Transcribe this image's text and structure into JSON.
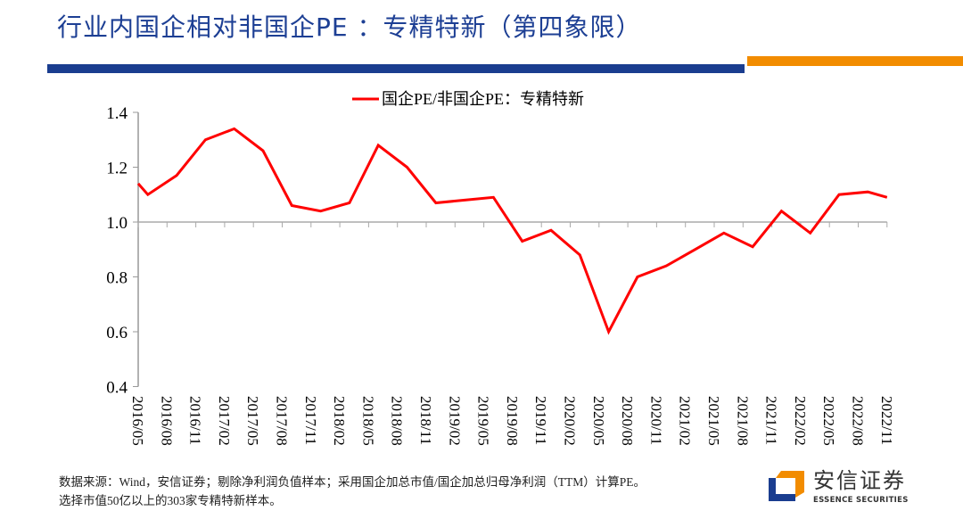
{
  "header": {
    "title": "行业内国企相对非国企PE ：专精特新（第四象限）"
  },
  "colors": {
    "title": "#1d3f94",
    "bar_blue": "#1a3d8f",
    "bar_orange": "#f28c00",
    "series": "#ff0000"
  },
  "chart_data": {
    "type": "line",
    "title": "",
    "xlabel": "",
    "ylabel": "",
    "ylim": [
      0.4,
      1.4
    ],
    "yticks": [
      "0.4",
      "0.6",
      "0.8",
      "1.0",
      "1.2",
      "1.4"
    ],
    "categories": [
      "2016/05",
      "2016/08",
      "2016/11",
      "2017/02",
      "2017/05",
      "2017/08",
      "2017/11",
      "2018/02",
      "2018/05",
      "2018/08",
      "2018/11",
      "2019/02",
      "2019/05",
      "2019/08",
      "2019/11",
      "2020/02",
      "2020/05",
      "2020/08",
      "2020/11",
      "2021/02",
      "2021/05",
      "2021/08",
      "2021/11",
      "2022/02",
      "2022/05",
      "2022/08",
      "2022/11"
    ],
    "grid": false,
    "reference_line": 1.0,
    "legend": {
      "position": "top",
      "entries": [
        "国企PE/非国企PE：专精特新"
      ]
    },
    "series": [
      {
        "name": "国企PE/非国企PE：专精特新",
        "x": [
          "2016/05",
          "2016/06",
          "2016/09",
          "2016/12",
          "2017/03",
          "2017/06",
          "2017/09",
          "2017/12",
          "2018/03",
          "2018/06",
          "2018/09",
          "2018/12",
          "2019/03",
          "2019/06",
          "2019/09",
          "2019/12",
          "2020/03",
          "2020/06",
          "2020/09",
          "2020/12",
          "2021/03",
          "2021/06",
          "2021/09",
          "2021/12",
          "2022/03",
          "2022/06",
          "2022/09",
          "2022/11"
        ],
        "values": [
          1.14,
          1.1,
          1.17,
          1.3,
          1.34,
          1.26,
          1.06,
          1.04,
          1.07,
          1.28,
          1.2,
          1.07,
          1.08,
          1.09,
          0.93,
          0.97,
          0.88,
          0.6,
          0.8,
          0.84,
          0.9,
          0.96,
          0.91,
          1.04,
          0.96,
          1.1,
          1.11,
          1.09
        ]
      }
    ]
  },
  "footer": {
    "note_line1": "数据来源：Wind，安信证券；剔除净利润负值样本；采用国企加总市值/国企加总归母净利润（TTM）计算PE。",
    "note_line2": "选择市值50亿以上的303家专精特新样本。"
  },
  "logo": {
    "cn": "安信证券",
    "en": "ESSENCE SECURITIES"
  }
}
